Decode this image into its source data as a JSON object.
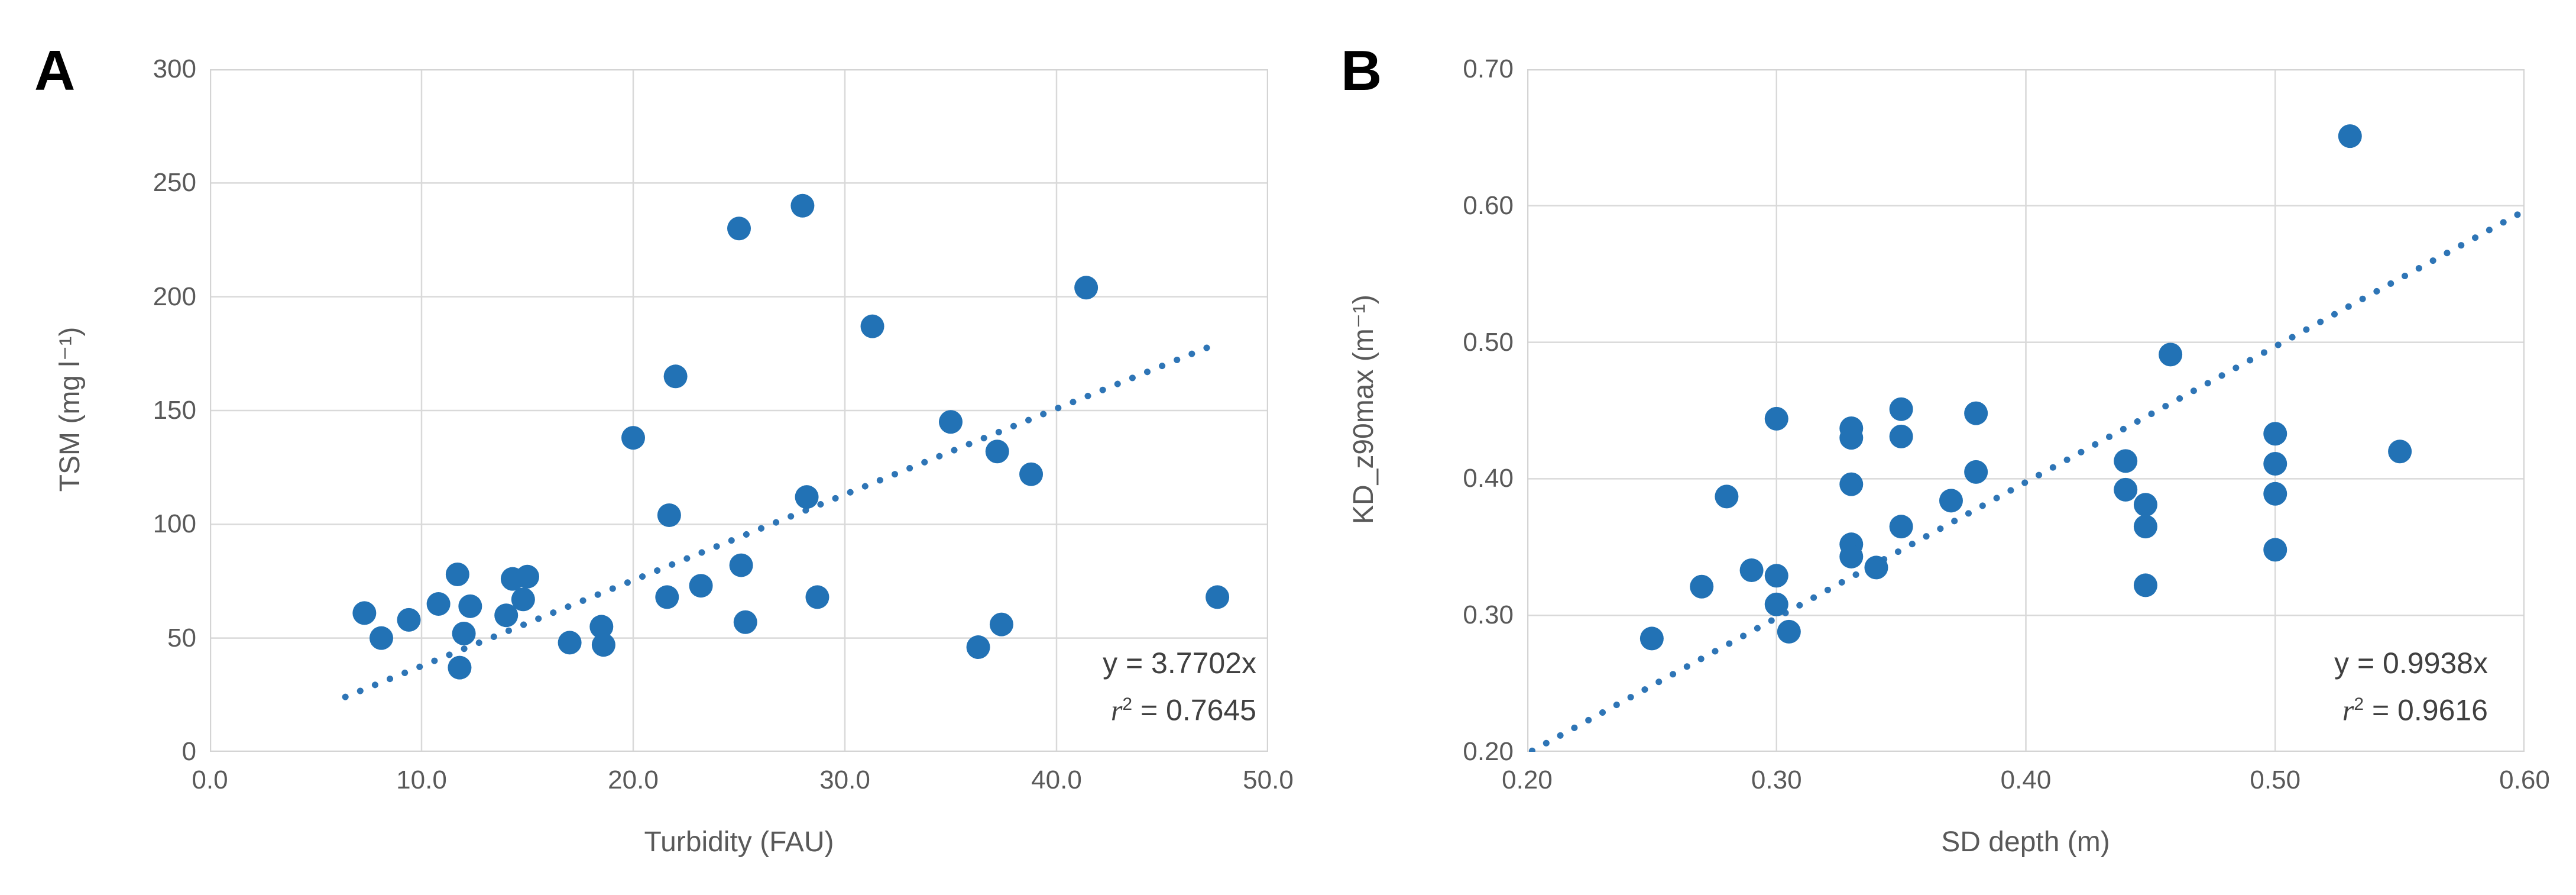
{
  "figure": {
    "background": "#FFFFFF",
    "colors": {
      "marker": "#2272B5",
      "trendline": "#2E75B6",
      "gridline": "#D9D9D9",
      "plot_border": "#D4D4D4",
      "axis_text": "#595959",
      "annotation_text": "#404040",
      "panel_label_text": "#000000"
    }
  },
  "chart_data": [
    {
      "panel_label": "A",
      "type": "scatter",
      "title": "",
      "xlabel": "Turbidity (FAU)",
      "ylabel": "TSM (mg l⁻¹)",
      "xlim": [
        0.0,
        50.0
      ],
      "ylim": [
        0,
        300
      ],
      "xtick_values": [
        0,
        10,
        20,
        30,
        40,
        50
      ],
      "xtick_labels": [
        "0.0",
        "10.0",
        "20.0",
        "30.0",
        "40.0",
        "50.0"
      ],
      "ytick_values": [
        0,
        50,
        100,
        150,
        200,
        250,
        300
      ],
      "ytick_labels": [
        "0",
        "50",
        "100",
        "150",
        "200",
        "250",
        "300"
      ],
      "grid": true,
      "legend": "none",
      "points": [
        [
          7.3,
          61
        ],
        [
          8.1,
          50
        ],
        [
          9.4,
          58
        ],
        [
          10.8,
          65
        ],
        [
          11.7,
          78
        ],
        [
          11.8,
          37
        ],
        [
          12.0,
          52
        ],
        [
          12.3,
          64
        ],
        [
          14.0,
          60
        ],
        [
          14.3,
          76
        ],
        [
          14.8,
          67
        ],
        [
          15.0,
          77
        ],
        [
          17.0,
          48
        ],
        [
          18.5,
          55
        ],
        [
          18.6,
          47
        ],
        [
          20.0,
          138
        ],
        [
          21.6,
          68
        ],
        [
          21.7,
          104
        ],
        [
          22.0,
          165
        ],
        [
          23.2,
          73
        ],
        [
          25.0,
          230
        ],
        [
          25.1,
          82
        ],
        [
          25.3,
          57
        ],
        [
          28.0,
          240
        ],
        [
          28.2,
          112
        ],
        [
          28.7,
          68
        ],
        [
          31.3,
          187
        ],
        [
          35.0,
          145
        ],
        [
          36.3,
          46
        ],
        [
          37.2,
          132
        ],
        [
          37.4,
          56
        ],
        [
          38.8,
          122
        ],
        [
          41.4,
          204
        ],
        [
          47.6,
          68
        ]
      ],
      "trendline": {
        "slope": 3.7702,
        "intercept": 0,
        "x_start": 6.4,
        "x_end": 47.7,
        "style": "dotted",
        "equation_label": "y = 3.7702x",
        "r2_prefix": "r",
        "r2_sup": "2",
        "r2_rest": " = 0.7645"
      }
    },
    {
      "panel_label": "B",
      "type": "scatter",
      "title": "",
      "xlabel": "SD depth (m)",
      "ylabel": "KD_z90max (m⁻¹)",
      "xlim": [
        0.2,
        0.6
      ],
      "ylim": [
        0.2,
        0.7
      ],
      "xtick_values": [
        0.2,
        0.3,
        0.4,
        0.5,
        0.6
      ],
      "xtick_labels": [
        "0.20",
        "0.30",
        "0.40",
        "0.50",
        "0.60"
      ],
      "ytick_values": [
        0.2,
        0.3,
        0.4,
        0.5,
        0.6,
        0.7
      ],
      "ytick_labels": [
        "0.20",
        "0.30",
        "0.40",
        "0.50",
        "0.60",
        "0.70"
      ],
      "grid": true,
      "legend": "none",
      "points": [
        [
          0.25,
          0.283
        ],
        [
          0.27,
          0.321
        ],
        [
          0.28,
          0.387
        ],
        [
          0.29,
          0.333
        ],
        [
          0.3,
          0.329
        ],
        [
          0.3,
          0.308
        ],
        [
          0.3,
          0.444
        ],
        [
          0.305,
          0.288
        ],
        [
          0.33,
          0.437
        ],
        [
          0.33,
          0.43
        ],
        [
          0.33,
          0.396
        ],
        [
          0.33,
          0.352
        ],
        [
          0.33,
          0.343
        ],
        [
          0.34,
          0.335
        ],
        [
          0.35,
          0.451
        ],
        [
          0.35,
          0.431
        ],
        [
          0.35,
          0.365
        ],
        [
          0.37,
          0.384
        ],
        [
          0.38,
          0.448
        ],
        [
          0.38,
          0.405
        ],
        [
          0.44,
          0.413
        ],
        [
          0.44,
          0.392
        ],
        [
          0.448,
          0.381
        ],
        [
          0.448,
          0.365
        ],
        [
          0.448,
          0.322
        ],
        [
          0.458,
          0.491
        ],
        [
          0.5,
          0.433
        ],
        [
          0.5,
          0.411
        ],
        [
          0.5,
          0.389
        ],
        [
          0.5,
          0.348
        ],
        [
          0.53,
          0.651
        ],
        [
          0.55,
          0.42
        ]
      ],
      "trendline": {
        "slope": 0.9938,
        "intercept": 0,
        "x_start": 0.202,
        "x_end": 0.6,
        "style": "dotted",
        "equation_label": "y = 0.9938x",
        "r2_prefix": "r",
        "r2_sup": "2",
        "r2_rest": " = 0.9616"
      }
    }
  ]
}
